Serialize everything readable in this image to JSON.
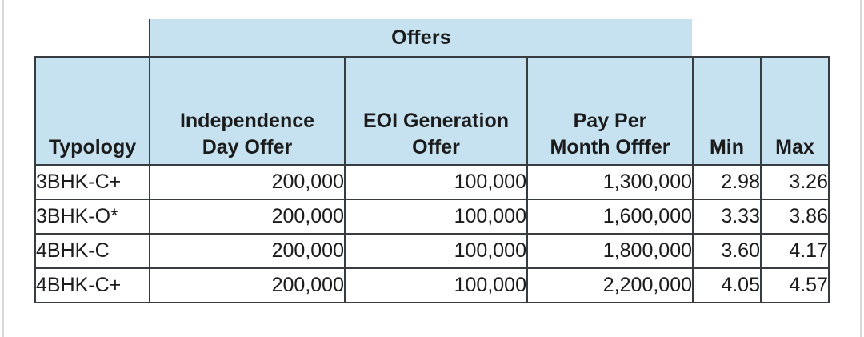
{
  "colors": {
    "header_fill": "#c6e2f1",
    "border": "#373c40",
    "text": "#1b1b1b",
    "page_edge_line": "#d9d9d9",
    "background": "#ffffff"
  },
  "offers_header": {
    "label": "Offers"
  },
  "table": {
    "header": {
      "typology": "Typology",
      "independence": "Independence\nDay Offer",
      "eoi": "EOI Generation\nOffer",
      "pay_per_month": "Pay Per\nMonth Offfer",
      "min": "Min",
      "max": "Max"
    },
    "rows": [
      {
        "typology": "3BHK-C+",
        "independence": "200,000",
        "eoi": "100,000",
        "pay_per_month": "1,300,000",
        "min": "2.98",
        "max": "3.26"
      },
      {
        "typology": "3BHK-O*",
        "independence": "200,000",
        "eoi": "100,000",
        "pay_per_month": "1,600,000",
        "min": "3.33",
        "max": "3.86"
      },
      {
        "typology": "4BHK-C",
        "independence": "200,000",
        "eoi": "100,000",
        "pay_per_month": "1,800,000",
        "min": "3.60",
        "max": "4.17"
      },
      {
        "typology": "4BHK-C+",
        "independence": "200,000",
        "eoi": "100,000",
        "pay_per_month": "2,200,000",
        "min": "4.05",
        "max": "4.57"
      }
    ]
  }
}
